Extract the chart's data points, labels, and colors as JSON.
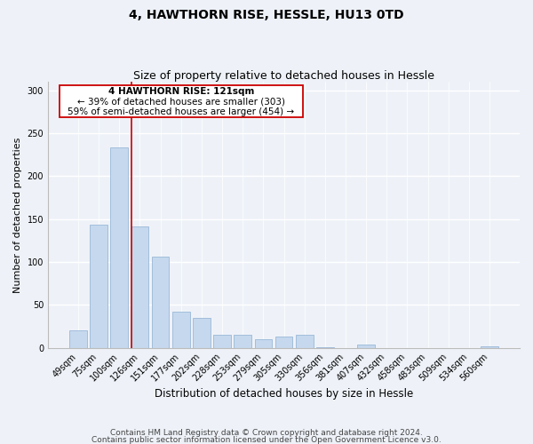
{
  "title": "4, HAWTHORN RISE, HESSLE, HU13 0TD",
  "subtitle": "Size of property relative to detached houses in Hessle",
  "xlabel": "Distribution of detached houses by size in Hessle",
  "ylabel": "Number of detached properties",
  "bar_labels": [
    "49sqm",
    "75sqm",
    "100sqm",
    "126sqm",
    "151sqm",
    "177sqm",
    "202sqm",
    "228sqm",
    "253sqm",
    "279sqm",
    "305sqm",
    "330sqm",
    "356sqm",
    "381sqm",
    "407sqm",
    "432sqm",
    "458sqm",
    "483sqm",
    "509sqm",
    "534sqm",
    "560sqm"
  ],
  "bar_values": [
    20,
    143,
    233,
    141,
    106,
    42,
    35,
    15,
    15,
    10,
    13,
    15,
    1,
    0,
    4,
    0,
    0,
    0,
    0,
    0,
    2
  ],
  "bar_color": "#c5d8ed",
  "bar_edge_color": "#9ab8d8",
  "property_line_color": "#cc0000",
  "property_line_bar_index": 3,
  "ylim": [
    0,
    310
  ],
  "yticks": [
    0,
    50,
    100,
    150,
    200,
    250,
    300
  ],
  "annotation_text_line1": "4 HAWTHORN RISE: 121sqm",
  "annotation_text_line2": "← 39% of detached houses are smaller (303)",
  "annotation_text_line3": "59% of semi-detached houses are larger (454) →",
  "footer_line1": "Contains HM Land Registry data © Crown copyright and database right 2024.",
  "footer_line2": "Contains public sector information licensed under the Open Government Licence v3.0.",
  "background_color": "#eef2f8",
  "plot_background_color": "#eef2f8",
  "grid_color": "#ffffff",
  "title_fontsize": 10,
  "subtitle_fontsize": 9,
  "xlabel_fontsize": 8.5,
  "ylabel_fontsize": 8,
  "tick_fontsize": 7,
  "annotation_fontsize": 7.5,
  "footer_fontsize": 6.5
}
